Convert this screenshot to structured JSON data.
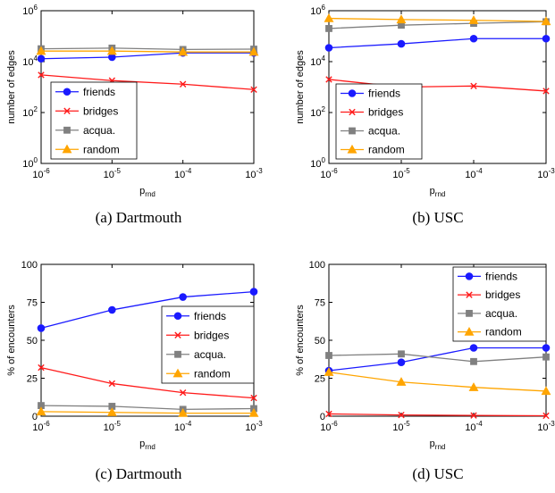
{
  "chart_data": [
    {
      "id": "a",
      "type": "line",
      "caption": "(a)  Dartmouth",
      "xlabel": "p",
      "xlabel_sub": "rnd",
      "ylabel": "number of edges",
      "x": [
        1e-06,
        1e-05,
        0.0001,
        0.001
      ],
      "x_ticks": [
        {
          "base": "10",
          "exp": "-6"
        },
        {
          "base": "10",
          "exp": "-5"
        },
        {
          "base": "10",
          "exp": "-4"
        },
        {
          "base": "10",
          "exp": "-3"
        }
      ],
      "y_scale": "log",
      "ylim": [
        1,
        1000000
      ],
      "y_ticks": [
        {
          "v": 1,
          "base": "10",
          "exp": "0"
        },
        {
          "v": 100,
          "base": "10",
          "exp": "2"
        },
        {
          "v": 10000,
          "base": "10",
          "exp": "4"
        },
        {
          "v": 1000000,
          "base": "10",
          "exp": "6"
        }
      ],
      "legend_position": "bottom-left",
      "series": [
        {
          "name": "friends",
          "values": [
            13000,
            15000,
            22000,
            22000
          ]
        },
        {
          "name": "bridges",
          "values": [
            3000,
            1800,
            1300,
            800
          ]
        },
        {
          "name": "acqua.",
          "values": [
            32000,
            34000,
            30000,
            31000
          ]
        },
        {
          "name": "random",
          "values": [
            26000,
            26000,
            24000,
            24000
          ]
        }
      ]
    },
    {
      "id": "b",
      "type": "line",
      "caption": "(b)  USC",
      "xlabel": "p",
      "xlabel_sub": "rnd",
      "ylabel": "number of edges",
      "x": [
        1e-06,
        1e-05,
        0.0001,
        0.001
      ],
      "x_ticks": [
        {
          "base": "10",
          "exp": "-6"
        },
        {
          "base": "10",
          "exp": "-5"
        },
        {
          "base": "10",
          "exp": "-4"
        },
        {
          "base": "10",
          "exp": "-3"
        }
      ],
      "y_scale": "log",
      "ylim": [
        1,
        1000000
      ],
      "y_ticks": [
        {
          "v": 1,
          "base": "10",
          "exp": "0"
        },
        {
          "v": 100,
          "base": "10",
          "exp": "2"
        },
        {
          "v": 10000,
          "base": "10",
          "exp": "4"
        },
        {
          "v": 1000000,
          "base": "10",
          "exp": "6"
        }
      ],
      "legend_position": "bottom-left",
      "series": [
        {
          "name": "friends",
          "values": [
            35000,
            50000,
            80000,
            80000
          ]
        },
        {
          "name": "bridges",
          "values": [
            2000,
            1000,
            1100,
            700
          ]
        },
        {
          "name": "acqua.",
          "values": [
            200000,
            270000,
            320000,
            370000
          ]
        },
        {
          "name": "random",
          "values": [
            500000,
            450000,
            420000,
            380000
          ]
        }
      ]
    },
    {
      "id": "c",
      "type": "line",
      "caption": "(c)  Dartmouth",
      "xlabel": "p",
      "xlabel_sub": "rnd",
      "ylabel": "% of encounters",
      "x": [
        1e-06,
        1e-05,
        0.0001,
        0.001
      ],
      "x_ticks": [
        {
          "base": "10",
          "exp": "-6"
        },
        {
          "base": "10",
          "exp": "-5"
        },
        {
          "base": "10",
          "exp": "-4"
        },
        {
          "base": "10",
          "exp": "-3"
        }
      ],
      "y_scale": "linear",
      "ylim": [
        0,
        100
      ],
      "y_ticks": [
        {
          "v": 0,
          "label": "0"
        },
        {
          "v": 25,
          "label": "25"
        },
        {
          "v": 50,
          "label": "50"
        },
        {
          "v": 75,
          "label": "75"
        },
        {
          "v": 100,
          "label": "100"
        }
      ],
      "legend_position": "center-right",
      "series": [
        {
          "name": "friends",
          "values": [
            58,
            70,
            78.5,
            82
          ]
        },
        {
          "name": "bridges",
          "values": [
            32,
            21.5,
            15.5,
            12
          ]
        },
        {
          "name": "acqua.",
          "values": [
            7,
            6.5,
            4.5,
            5
          ]
        },
        {
          "name": "random",
          "values": [
            3,
            2.5,
            2,
            2
          ]
        }
      ]
    },
    {
      "id": "d",
      "type": "line",
      "caption": "(d)  USC",
      "xlabel": "p",
      "xlabel_sub": "rnd",
      "ylabel": "% of encounters",
      "x": [
        1e-06,
        1e-05,
        0.0001,
        0.001
      ],
      "x_ticks": [
        {
          "base": "10",
          "exp": "-6"
        },
        {
          "base": "10",
          "exp": "-5"
        },
        {
          "base": "10",
          "exp": "-4"
        },
        {
          "base": "10",
          "exp": "-3"
        }
      ],
      "y_scale": "linear",
      "ylim": [
        0,
        100
      ],
      "y_ticks": [
        {
          "v": 0,
          "label": "0"
        },
        {
          "v": 25,
          "label": "25"
        },
        {
          "v": 50,
          "label": "50"
        },
        {
          "v": 75,
          "label": "75"
        },
        {
          "v": 100,
          "label": "100"
        }
      ],
      "legend_position": "top-right",
      "series": [
        {
          "name": "friends",
          "values": [
            30,
            35.5,
            45,
            45
          ]
        },
        {
          "name": "bridges",
          "values": [
            1.5,
            0.8,
            0.5,
            0.3
          ]
        },
        {
          "name": "acqua.",
          "values": [
            40,
            41,
            36,
            39
          ]
        },
        {
          "name": "random",
          "values": [
            29,
            22.5,
            19,
            16.5
          ]
        }
      ]
    }
  ],
  "series_style": {
    "friends": {
      "color": "#1a1aff",
      "marker": "circle"
    },
    "bridges": {
      "color": "#ff1a1a",
      "marker": "x"
    },
    "acqua.": {
      "color": "#808080",
      "marker": "square"
    },
    "random": {
      "color": "#ffa500",
      "marker": "triangle"
    }
  }
}
